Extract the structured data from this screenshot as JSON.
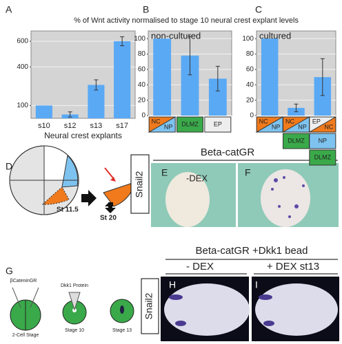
{
  "title": "% of Wnt activity normalised to stage 10 neural crest explant levels",
  "chart_data": [
    {
      "type": "bar",
      "panel": "A",
      "categories": [
        "s10",
        "s12",
        "s13",
        "s17"
      ],
      "values": [
        100,
        30,
        260,
        600
      ],
      "errors": [
        null,
        20,
        40,
        35
      ],
      "color": "#5aa9f5",
      "ylim": [
        0,
        680
      ],
      "yticks": [
        100,
        400,
        600
      ],
      "grid": true,
      "xlabel": "Neural crest explants"
    },
    {
      "type": "bar",
      "panel": "B",
      "label": "non-cultured",
      "categories": [
        null,
        null,
        null
      ],
      "category_icons": [
        [
          "NC",
          "NP"
        ],
        [
          "DLMZ"
        ],
        [
          "EP"
        ]
      ],
      "values": [
        100,
        78,
        48
      ],
      "errors": [
        null,
        25,
        16
      ],
      "color": "#5aa9f5",
      "ylim": [
        0,
        110
      ],
      "yticks": [
        0,
        20,
        40,
        60,
        80,
        100
      ],
      "grid": true
    },
    {
      "type": "bar",
      "panel": "C",
      "label": "cultured",
      "categories": [
        null,
        null,
        null
      ],
      "category_icons": [
        [
          "NC",
          "NP"
        ],
        [
          "NC",
          "NP",
          "DLMZ"
        ],
        [
          "EP",
          "NC",
          "NP",
          "DLMZ"
        ]
      ],
      "values": [
        100,
        10,
        50
      ],
      "errors": [
        null,
        5,
        24
      ],
      "color": "#5aa9f5",
      "ylim": [
        0,
        110
      ],
      "yticks": [
        0,
        20,
        40,
        60,
        80,
        100
      ],
      "grid": true
    }
  ],
  "panel_d": {
    "letter": "D",
    "stage1": "St 11.5",
    "stage2": "St 20"
  },
  "panel_ef": {
    "header": "Beta-catGR",
    "marker": "Snail2",
    "e": "E",
    "e_label": "-DEX",
    "f": "F"
  },
  "panel_g": {
    "letter": "G",
    "injection": "βCateninGR",
    "protein": "Dkk1 Protein",
    "stage1": "2-Cell Stage",
    "stage2": "Stage 10",
    "stage3": "Stage 13"
  },
  "panel_hi": {
    "header": "Beta-catGR +Dkk1 bead",
    "h_label": "- DEX",
    "i_label": "+ DEX st13",
    "marker": "Snail2",
    "h": "H",
    "i": "I"
  }
}
